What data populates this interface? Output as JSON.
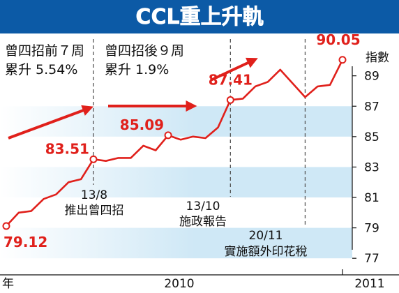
{
  "chart_data": {
    "type": "line",
    "title": "CCL重上升軌",
    "ylabel": "指數",
    "xlabel": "",
    "ylim": [
      76,
      91.6
    ],
    "yticks": [
      77,
      79,
      81,
      83,
      85,
      87,
      89
    ],
    "x_axis_label_left": "年",
    "x_tick_labels": [
      "2010",
      "2011"
    ],
    "grid": false,
    "colors": {
      "line": "#e0201b",
      "band": "#cfe8f6",
      "title_bg": "#0c5aa6",
      "dashed": "#555555"
    },
    "series": [
      {
        "values": [
          79.12,
          80.0,
          80.1,
          80.9,
          81.2,
          82.0,
          82.2,
          83.51,
          83.4,
          83.6,
          83.6,
          84.4,
          84.1,
          85.09,
          84.8,
          85.0,
          84.9,
          85.6,
          87.41,
          87.5,
          88.3,
          88.6,
          89.4,
          88.5,
          87.6,
          88.3,
          88.4,
          90.05
        ]
      }
    ],
    "data_labels": [
      {
        "index": 0,
        "text": "79.12",
        "pos": "below"
      },
      {
        "index": 7,
        "text": "83.51",
        "pos": "left"
      },
      {
        "index": 13,
        "text": "85.09",
        "pos": "left"
      },
      {
        "index": 18,
        "text": "87.41",
        "pos": "above"
      },
      {
        "index": 27,
        "text": "90.05",
        "pos": "above"
      }
    ],
    "markers": [
      {
        "index": 7,
        "date": "13/8",
        "event": "推出曾四招"
      },
      {
        "index": 18,
        "date": "13/10",
        "event": "施政報告"
      },
      {
        "index": 24,
        "date": "20/11",
        "event": "實施額外印花稅"
      }
    ],
    "notes": [
      {
        "lines": [
          "曾四招前７周",
          "累升 5.54%"
        ]
      },
      {
        "lines": [
          "曾四招後９周",
          "累升 1.9%"
        ]
      }
    ]
  }
}
